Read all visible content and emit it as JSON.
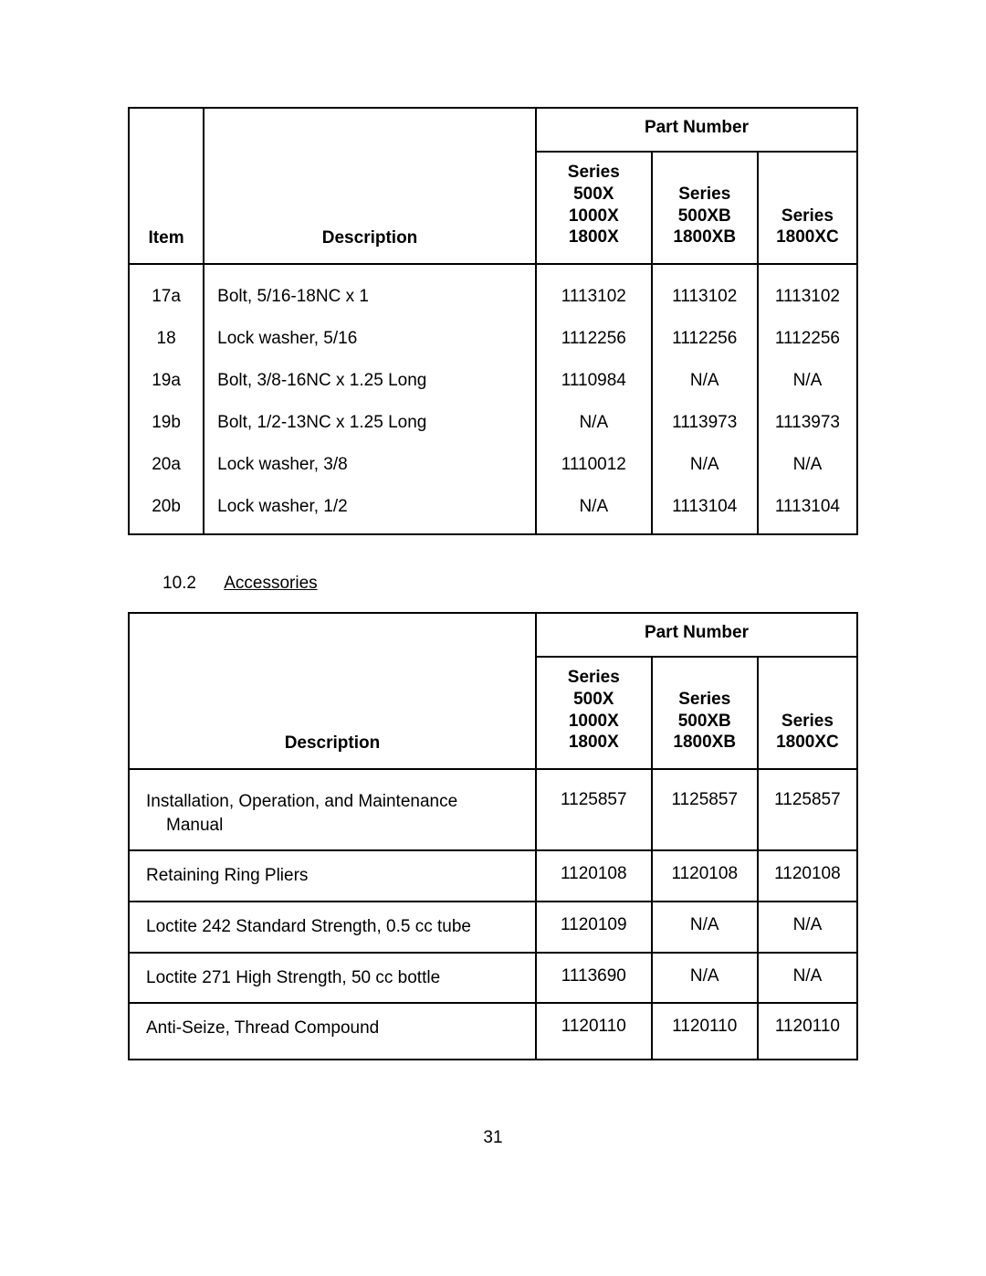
{
  "page_number": "31",
  "parts_table": {
    "header": {
      "part_number": "Part Number",
      "item": "Item",
      "description": "Description",
      "series1": "Series\n500X\n1000X\n1800X",
      "series2": "Series\n500XB\n1800XB",
      "series3": "Series\n1800XC"
    },
    "rows": [
      {
        "item": "17a",
        "desc": "Bolt, 5/16-18NC x 1",
        "s1": "1113102",
        "s2": "1113102",
        "s3": "1113102"
      },
      {
        "item": "18",
        "desc": "Lock washer, 5/16",
        "s1": "1112256",
        "s2": "1112256",
        "s3": "1112256"
      },
      {
        "item": "19a",
        "desc": "Bolt, 3/8-16NC x 1.25 Long",
        "s1": "1110984",
        "s2": "N/A",
        "s3": "N/A"
      },
      {
        "item": "19b",
        "desc": "Bolt, 1/2-13NC x 1.25 Long",
        "s1": "N/A",
        "s2": "1113973",
        "s3": "1113973"
      },
      {
        "item": "20a",
        "desc": "Lock washer, 3/8",
        "s1": "1110012",
        "s2": "N/A",
        "s3": "N/A"
      },
      {
        "item": "20b",
        "desc": "Lock washer, 1/2",
        "s1": "N/A",
        "s2": "1113104",
        "s3": "1113104"
      }
    ]
  },
  "section": {
    "number": "10.2",
    "title": "Accessories"
  },
  "accessories_table": {
    "header": {
      "part_number": "Part Number",
      "description": "Description",
      "series1": "Series\n500X\n1000X\n1800X",
      "series2": "Series\n500XB\n1800XB",
      "series3": "Series\n1800XC"
    },
    "rows": [
      {
        "desc": "Installation, Operation, and Maintenance",
        "desc_line2": "Manual",
        "s1": "1125857",
        "s2": "1125857",
        "s3": "1125857"
      },
      {
        "desc": "Retaining Ring Pliers",
        "s1": "1120108",
        "s2": "1120108",
        "s3": "1120108"
      },
      {
        "desc": "Loctite 242 Standard Strength, 0.5 cc tube",
        "s1": "1120109",
        "s2": "N/A",
        "s3": "N/A"
      },
      {
        "desc": "Loctite 271 High Strength, 50 cc bottle",
        "s1": "1113690",
        "s2": "N/A",
        "s3": "N/A"
      },
      {
        "desc": "Anti-Seize, Thread Compound",
        "s1": "1120110",
        "s2": "1120110",
        "s3": "1120110"
      }
    ]
  },
  "colors": {
    "background": "#ffffff",
    "text": "#000000",
    "border": "#000000"
  },
  "typography": {
    "font_family": "Trebuchet MS",
    "body_fontsize": 19,
    "header_weight": "bold"
  }
}
